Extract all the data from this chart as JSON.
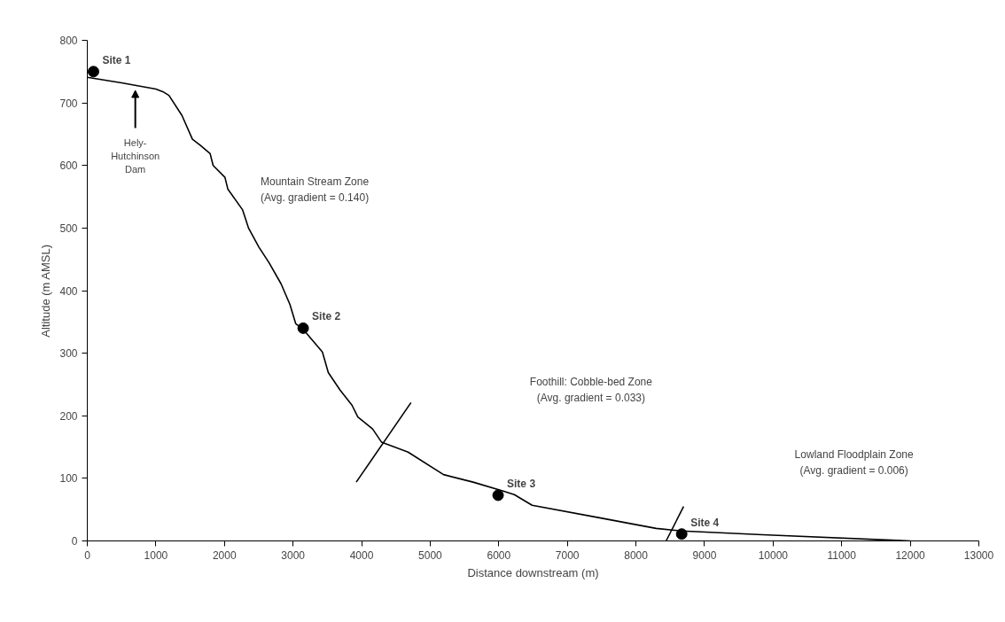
{
  "chart_data": {
    "type": "line",
    "xlabel": "Distance downstream (m)",
    "ylabel": "Altitude (m AMSL)",
    "xlim": [
      0,
      13000
    ],
    "ylim": [
      0,
      800
    ],
    "xticks": [
      0,
      1000,
      2000,
      3000,
      4000,
      5000,
      6000,
      7000,
      8000,
      9000,
      10000,
      11000,
      12000,
      13000
    ],
    "yticks": [
      0,
      100,
      200,
      300,
      400,
      500,
      600,
      700,
      800
    ],
    "grid": false,
    "line_style": "solid",
    "series": [
      {
        "color": "#000000",
        "marker": "none",
        "x": [
          0,
          500,
          1000,
          1100,
          1190,
          1380,
          1533,
          1650,
          1791,
          1835,
          2007,
          2050,
          2265,
          2351,
          2500,
          2653,
          2825,
          2954,
          3040,
          3148,
          3428,
          3514,
          3686,
          3859,
          3945,
          4160,
          4289,
          4677,
          5194,
          5625,
          6055,
          6227,
          6486,
          7468,
          8295,
          8667,
          9845,
          12000
        ],
        "values": [
          741,
          732,
          722,
          718,
          712,
          680,
          642,
          632,
          619,
          600,
          581,
          562,
          529,
          500,
          470,
          444,
          411,
          378,
          347,
          338,
          302,
          269,
          241,
          217,
          198,
          179,
          158,
          142,
          106,
          94,
          80,
          74,
          57,
          37,
          20,
          16,
          10,
          0
        ]
      },
      {
        "type": "scatter",
        "color": "#000000",
        "marker": "circle",
        "x": [
          90,
          3148,
          5990,
          8667
        ],
        "values": [
          750,
          340,
          73,
          11
        ]
      },
      {
        "color": "#000000",
        "marker": "none",
        "x": [
          3922,
          4720
        ],
        "values": [
          94,
          221
        ]
      },
      {
        "color": "#000000",
        "marker": "none",
        "x": [
          8440,
          8695
        ],
        "values": [
          0,
          55
        ]
      }
    ],
    "annotations": [
      {
        "text": "Site 1",
        "x": 90,
        "y": 750
      },
      {
        "text": "Site 2",
        "x": 3148,
        "y": 340
      },
      {
        "text": "Site 3",
        "x": 5990,
        "y": 73
      },
      {
        "text": "Site 4",
        "x": 8667,
        "y": 11
      },
      {
        "text": "Hely-\nHutchinson\nDam",
        "x": 700,
        "y": 725
      },
      "Mountain Stream Zone\n(Avg. gradient = 0.140)",
      "Foothill: Cobble-bed Zone\n(Avg. gradient = 0.033)",
      "Lowland Floodplain Zone\n(Avg. gradient = 0.006)"
    ]
  }
}
